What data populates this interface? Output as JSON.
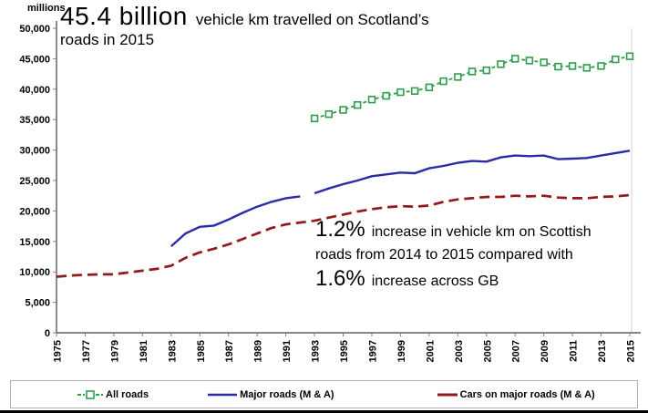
{
  "header": {
    "units_label": "millions",
    "headline_value": "45.4 billion",
    "headline_rest": "vehicle km travelled on Scotland’s",
    "headline_line2": "roads in 2015"
  },
  "annotation": {
    "stat1": "1.2%",
    "line1_rest": "increase in vehicle km on Scottish",
    "line2": "roads from 2014 to 2015 compared with",
    "stat2": "1.6%",
    "line3_rest": "increase across GB"
  },
  "legend": {
    "items": [
      {
        "label": "All roads",
        "color": "#2f9e4c",
        "style": "dashed-with-square-marker"
      },
      {
        "label": "Major roads (M & A)",
        "color": "#2b2ba6",
        "style": "solid"
      },
      {
        "label": "Cars on major roads (M & A)",
        "color": "#92191c",
        "style": "long-dash"
      }
    ]
  },
  "chart_data": {
    "type": "line",
    "title": "45.4 billion vehicle km travelled on Scotland’s roads in 2015",
    "ylabel": "millions",
    "grid": "off",
    "legend_position": "bottom",
    "x_axis": {
      "min": 1975,
      "max": 2015,
      "tick_years": [
        1975,
        1977,
        1979,
        1981,
        1983,
        1985,
        1987,
        1989,
        1991,
        1993,
        1995,
        1997,
        1999,
        2001,
        2003,
        2005,
        2007,
        2009,
        2011,
        2013,
        2015
      ]
    },
    "y_axis": {
      "min": 0,
      "max": 50000,
      "tick_values": [
        0,
        5000,
        10000,
        15000,
        20000,
        25000,
        30000,
        35000,
        40000,
        45000,
        50000
      ],
      "tick_labels": [
        "0",
        "5,000",
        "10,000",
        "15,000",
        "20,000",
        "25,000",
        "30,000",
        "35,000",
        "40,000",
        "45,000",
        "50,000"
      ]
    },
    "series": [
      {
        "name": "All roads",
        "color": "#2f9e4c",
        "line": "dash",
        "marker": "square",
        "segments": [
          {
            "start_year": 1993,
            "values": [
              35200,
              35900,
              36600,
              37400,
              38300,
              38900,
              39500,
              39700,
              40300,
              41300,
              42000,
              42900,
              43100,
              44100,
              45000,
              44700,
              44400,
              43700,
              43800,
              43500,
              43800,
              44900,
              45400
            ]
          }
        ]
      },
      {
        "name": "Major roads (M & A)",
        "color": "#2b2ba6",
        "line": "solid",
        "marker": "none",
        "segments": [
          {
            "start_year": 1983,
            "values": [
              14200,
              16300,
              17400,
              17600,
              18600,
              19700,
              20700,
              21500,
              22100,
              22400
            ]
          },
          {
            "start_year": 1993,
            "values": [
              22900,
              23700,
              24400,
              25000,
              25700,
              26000,
              26300,
              26200,
              27000,
              27400,
              27900,
              28200,
              28100,
              28800,
              29100,
              29000,
              29100,
              28500,
              28600,
              28700,
              29100,
              29500,
              29900
            ]
          }
        ]
      },
      {
        "name": "Cars on major roads (M & A)",
        "color": "#92191c",
        "line": "long-dash",
        "marker": "none",
        "segments": [
          {
            "start_year": 1975,
            "values": [
              9200,
              9400,
              9500,
              9600,
              9600,
              9900,
              10200,
              10500,
              11000,
              12300,
              13200,
              13800,
              14500,
              15400,
              16300,
              17200,
              17800,
              18100,
              18400,
              18900,
              19400,
              19900,
              20300,
              20600,
              20800,
              20700,
              20900,
              21500,
              21900,
              22100,
              22300,
              22300,
              22500,
              22400,
              22500,
              22200,
              22100,
              22100,
              22300,
              22400,
              22600
            ]
          }
        ]
      }
    ]
  }
}
